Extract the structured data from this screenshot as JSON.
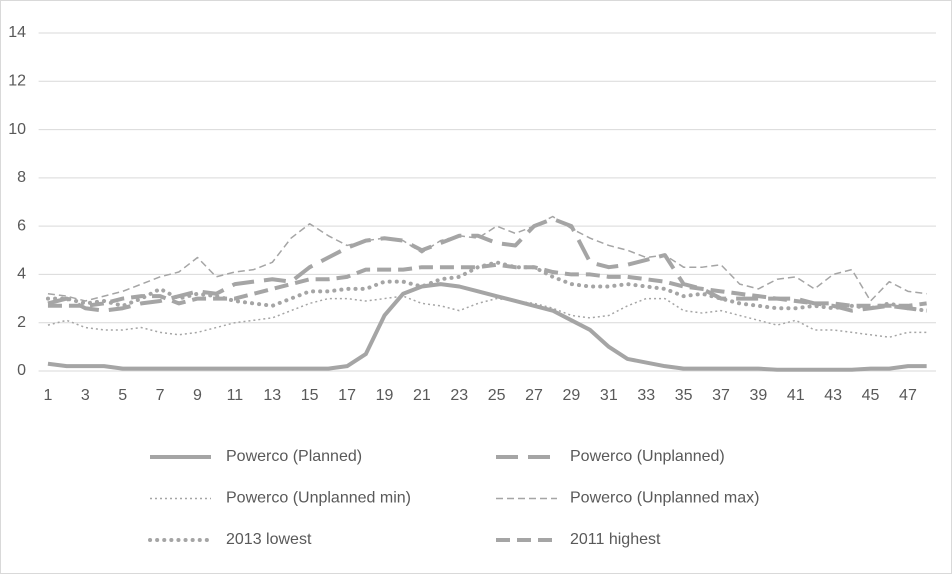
{
  "chart_data": {
    "type": "line",
    "categories": [
      1,
      null,
      3,
      null,
      5,
      null,
      7,
      null,
      9,
      null,
      11,
      null,
      13,
      null,
      15,
      null,
      17,
      null,
      19,
      null,
      21,
      null,
      23,
      null,
      25,
      null,
      27,
      null,
      29,
      null,
      31,
      null,
      33,
      null,
      35,
      null,
      37,
      null,
      39,
      null,
      41,
      null,
      43,
      null,
      45,
      null,
      47,
      null
    ],
    "ylim": [
      0,
      14
    ],
    "yticks": [
      0,
      2,
      4,
      6,
      8,
      10,
      12,
      14
    ],
    "grid": true,
    "series": [
      {
        "name": "Powerco (Planned)",
        "color": "#a5a5a5",
        "line_style": "solid",
        "values": [
          0.3,
          0.2,
          0.2,
          0.2,
          0.1,
          0.1,
          0.1,
          0.1,
          0.1,
          0.1,
          0.1,
          0.1,
          0.1,
          0.1,
          0.1,
          0.1,
          0.2,
          0.7,
          2.3,
          3.2,
          3.5,
          3.6,
          3.5,
          3.3,
          3.1,
          2.9,
          2.7,
          2.5,
          2.1,
          1.7,
          1.0,
          0.5,
          0.35,
          0.2,
          0.1,
          0.1,
          0.1,
          0.1,
          0.1,
          0.05,
          0.05,
          0.05,
          0.05,
          0.05,
          0.1,
          0.1,
          0.2,
          0.2
        ]
      },
      {
        "name": "Powerco (Unplanned)",
        "color": "#a5a5a5",
        "line_style": "long-dash",
        "values": [
          2.8,
          3.0,
          2.6,
          2.5,
          2.6,
          2.8,
          2.9,
          3.1,
          3.3,
          3.2,
          3.6,
          3.7,
          3.8,
          3.7,
          4.3,
          4.7,
          5.1,
          5.4,
          5.5,
          5.4,
          5.0,
          5.3,
          5.6,
          5.6,
          5.3,
          5.2,
          6.0,
          6.3,
          6.0,
          4.5,
          4.3,
          4.4,
          4.6,
          4.8,
          3.6,
          3.4,
          3.0,
          3.0,
          3.0,
          3.0,
          3.0,
          2.8,
          2.7,
          2.5,
          2.6,
          2.7,
          2.6,
          2.5
        ]
      },
      {
        "name": "Powerco (Unplanned min)",
        "color": "#a5a5a5",
        "line_style": "dotted",
        "values": [
          1.9,
          2.1,
          1.8,
          1.7,
          1.7,
          1.8,
          1.6,
          1.5,
          1.6,
          1.8,
          2.0,
          2.1,
          2.2,
          2.5,
          2.8,
          3.0,
          3.0,
          2.9,
          3.0,
          3.1,
          2.8,
          2.7,
          2.5,
          2.8,
          3.0,
          2.9,
          2.8,
          2.6,
          2.3,
          2.2,
          2.3,
          2.7,
          3.0,
          3.0,
          2.5,
          2.4,
          2.5,
          2.3,
          2.1,
          1.9,
          2.1,
          1.7,
          1.7,
          1.6,
          1.5,
          1.4,
          1.6,
          1.6
        ]
      },
      {
        "name": "Powerco (Unplanned max)",
        "color": "#a5a5a5",
        "line_style": "dashed",
        "values": [
          3.2,
          3.1,
          2.9,
          3.1,
          3.3,
          3.6,
          3.9,
          4.1,
          4.7,
          3.9,
          4.1,
          4.2,
          4.5,
          5.5,
          6.1,
          5.6,
          5.2,
          5.4,
          5.5,
          5.4,
          4.9,
          5.4,
          5.6,
          5.5,
          6.0,
          5.7,
          6.0,
          6.4,
          5.9,
          5.5,
          5.2,
          5.0,
          4.7,
          4.8,
          4.3,
          4.3,
          4.4,
          3.6,
          3.4,
          3.8,
          3.9,
          3.4,
          4.0,
          4.2,
          2.9,
          3.7,
          3.3,
          3.2
        ]
      },
      {
        "name": "2013 lowest",
        "color": "#a5a5a5",
        "line_style": "round-dot",
        "values": [
          3.0,
          3.0,
          2.8,
          2.9,
          2.7,
          3.0,
          3.4,
          3.0,
          3.2,
          3.1,
          2.9,
          2.8,
          2.7,
          3.0,
          3.3,
          3.3,
          3.4,
          3.4,
          3.7,
          3.7,
          3.5,
          3.8,
          3.9,
          4.3,
          4.5,
          4.3,
          4.3,
          3.9,
          3.6,
          3.5,
          3.5,
          3.6,
          3.5,
          3.4,
          3.1,
          3.2,
          3.0,
          2.8,
          2.7,
          2.6,
          2.6,
          2.7,
          2.6,
          2.7,
          2.6,
          2.8,
          2.6,
          2.5
        ]
      },
      {
        "name": "2011 highest",
        "color": "#a5a5a5",
        "line_style": "dash",
        "values": [
          2.7,
          2.7,
          2.7,
          2.8,
          3.0,
          3.1,
          3.1,
          2.8,
          3.0,
          3.0,
          3.0,
          3.2,
          3.4,
          3.6,
          3.8,
          3.8,
          3.9,
          4.2,
          4.2,
          4.2,
          4.3,
          4.3,
          4.3,
          4.3,
          4.4,
          4.3,
          4.3,
          4.1,
          4.0,
          4.0,
          3.9,
          3.9,
          3.8,
          3.7,
          3.5,
          3.4,
          3.3,
          3.2,
          3.1,
          3.0,
          2.9,
          2.8,
          2.8,
          2.7,
          2.7,
          2.7,
          2.7,
          2.8
        ]
      }
    ]
  }
}
